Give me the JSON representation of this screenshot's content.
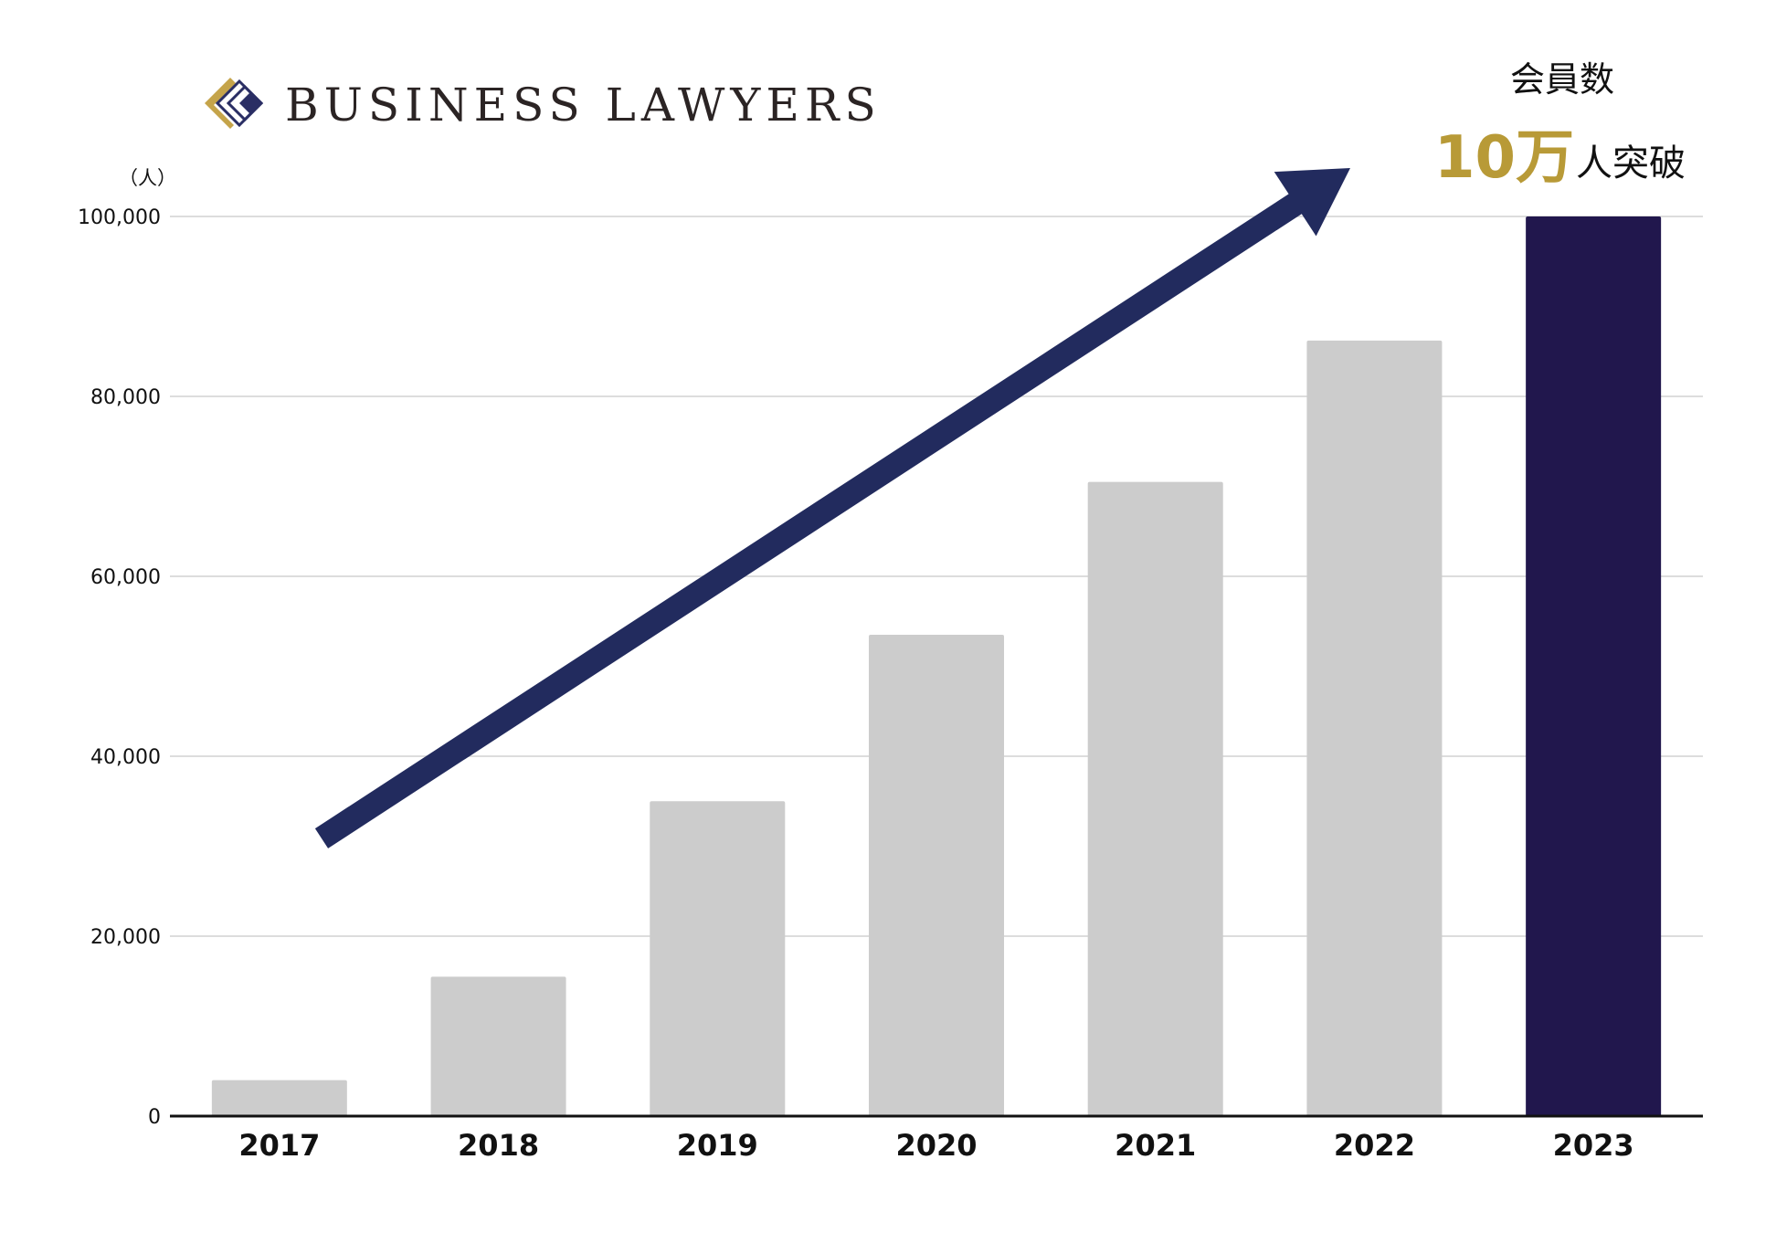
{
  "brand": {
    "name": "BUSINESS LAWYERS",
    "icon": "diamond-layers-logo-icon",
    "colors": {
      "gold": "#c5a44a",
      "navy": "#2a2e64"
    }
  },
  "annotation": {
    "title": "会員数",
    "big": "10万",
    "rest": "人突破",
    "big_color": "#b89a37"
  },
  "chart_data": {
    "type": "bar",
    "unit": "（人）",
    "categories": [
      "2017",
      "2018",
      "2019",
      "2020",
      "2021",
      "2022",
      "2023"
    ],
    "values": [
      4000,
      15500,
      35000,
      53500,
      70500,
      86200,
      100000
    ],
    "ylim": [
      0,
      100000
    ],
    "yticks": [
      "0",
      "20,000",
      "40,000",
      "60,000",
      "80,000",
      "100,000"
    ],
    "ytick_values": [
      0,
      20000,
      40000,
      60000,
      80000,
      100000
    ],
    "grid": true,
    "colors": {
      "bar": "#cccccc",
      "highlight": "#21174d",
      "arrow": "#222b5e",
      "grid": "#dddddd",
      "axis": "#111111"
    },
    "highlight_category": "2023",
    "trend_arrow": true
  }
}
